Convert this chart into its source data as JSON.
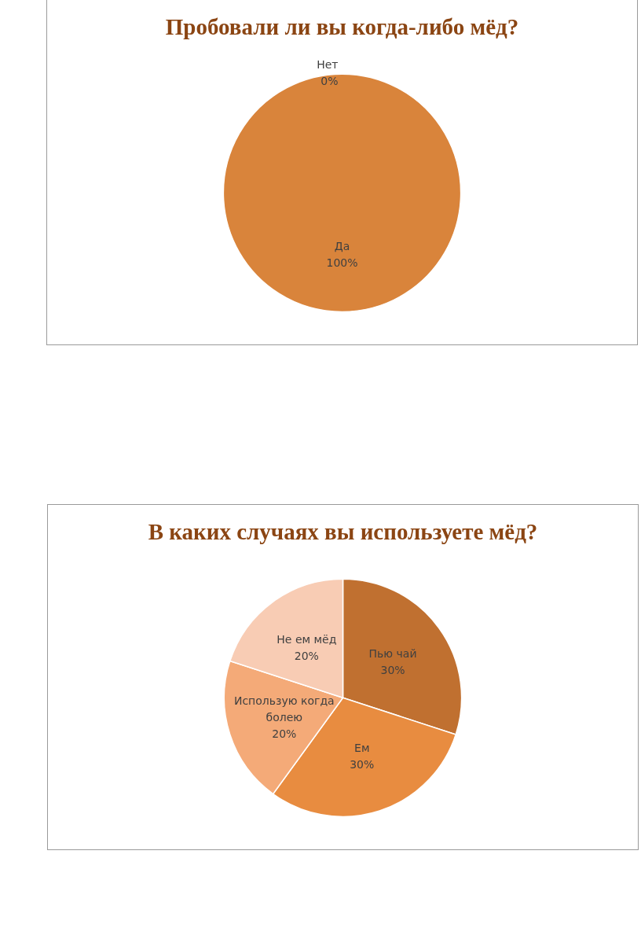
{
  "chart_data": [
    {
      "type": "pie",
      "title": "Пробовали ли вы когда-либо мёд?",
      "categories": [
        "Нет",
        "Да"
      ],
      "values": [
        0,
        100
      ],
      "colors": [
        "#a5a5a5",
        "#d9843b"
      ],
      "value_labels": [
        "0%",
        "100%"
      ]
    },
    {
      "type": "pie",
      "title": "В каких случаях вы используете мёд?",
      "categories": [
        "Пью чай",
        "Ем",
        "Использую когда болею",
        "Не ем мёд"
      ],
      "values": [
        30,
        30,
        20,
        20
      ],
      "colors": [
        "#c07030",
        "#e88c40",
        "#f4aa78",
        "#f8ccb4"
      ],
      "value_labels": [
        "30%",
        "30%",
        "20%",
        "20%"
      ]
    }
  ]
}
